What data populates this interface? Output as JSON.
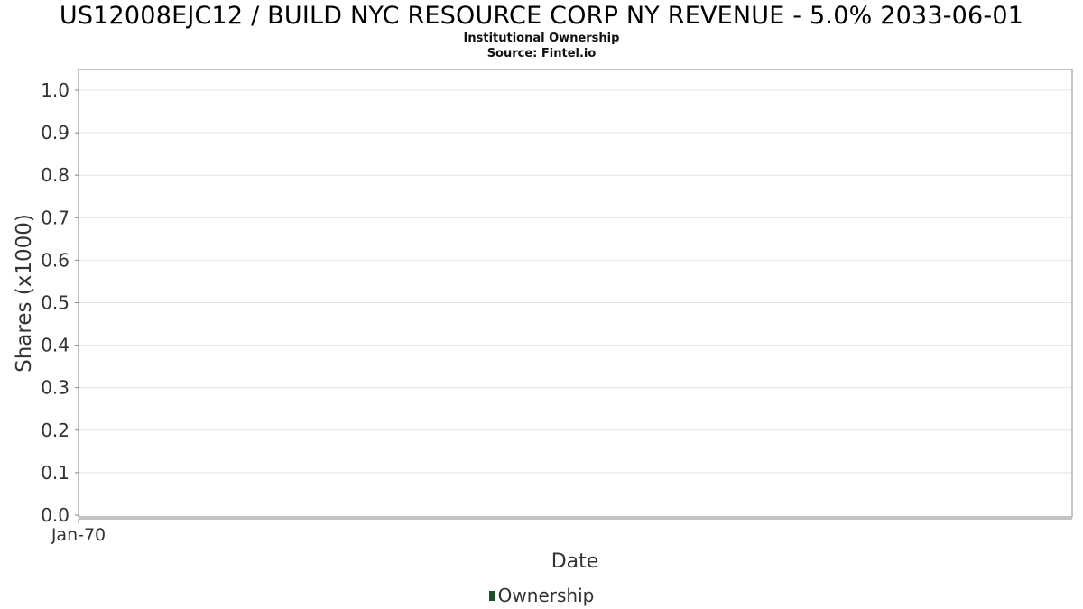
{
  "header": {
    "title": "US12008EJC12 / BUILD NYC RESOURCE CORP NY REVENUE - 5.0% 2033-06-01",
    "subtitle": "Institutional Ownership",
    "source": "Source: Fintel.io"
  },
  "chart_data": {
    "type": "line",
    "title": "US12008EJC12 / BUILD NYC RESOURCE CORP NY REVENUE - 5.0% 2033-06-01",
    "xlabel": "Date",
    "ylabel": "Shares (x1000)",
    "x_ticks": [
      "Jan-70"
    ],
    "y_ticks": [
      "0.0",
      "0.1",
      "0.2",
      "0.3",
      "0.4",
      "0.5",
      "0.6",
      "0.7",
      "0.8",
      "0.9",
      "1.0"
    ],
    "ylim": [
      0,
      1.05
    ],
    "grid": true,
    "legend_position": "bottom",
    "series": [
      {
        "name": "Ownership",
        "color": "#1f4e2a",
        "x": [],
        "y": []
      }
    ]
  },
  "legend": {
    "items": [
      {
        "label": "Ownership",
        "color": "#1f4e2a"
      }
    ]
  }
}
